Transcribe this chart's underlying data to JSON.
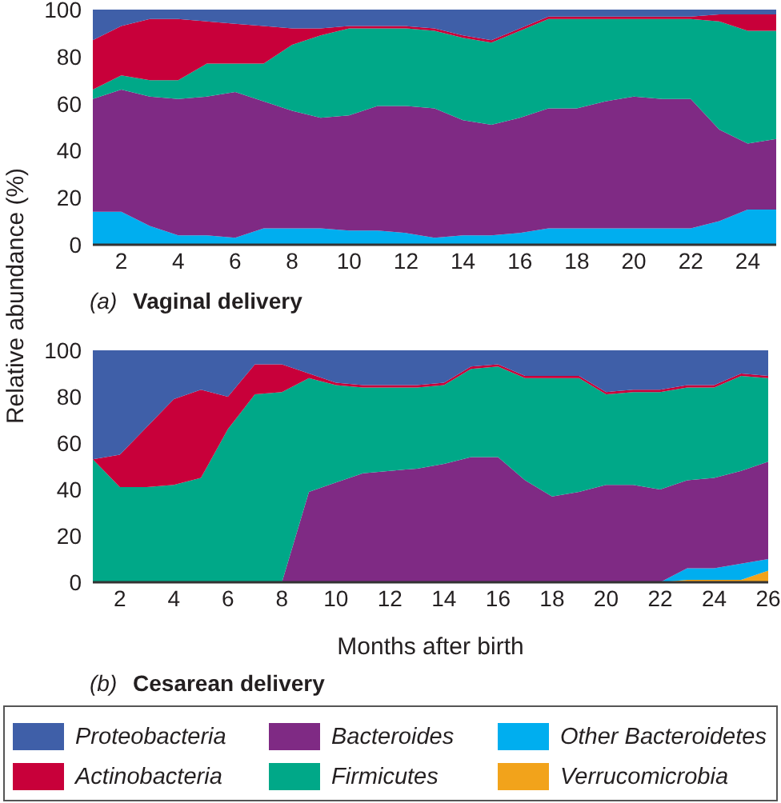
{
  "chart_data": [
    {
      "type": "area",
      "title": "(a) Vaginal delivery",
      "ylabel": "Relative abundance (%)",
      "stacked": true,
      "x": [
        1,
        2,
        3,
        4,
        5,
        6,
        7,
        8,
        9,
        10,
        11,
        12,
        13,
        14,
        15,
        16,
        17,
        18,
        19,
        20,
        21,
        22,
        23,
        24,
        25
      ],
      "xlim": [
        1,
        25
      ],
      "xticks": [
        2,
        4,
        6,
        8,
        10,
        12,
        14,
        16,
        18,
        20,
        22,
        24
      ],
      "ylim": [
        0,
        100
      ],
      "yticks": [
        0,
        20,
        40,
        60,
        80,
        100
      ],
      "series": [
        {
          "color": "#00aeef",
          "values": [
            14,
            14,
            8,
            4,
            4,
            3,
            7,
            7,
            7,
            6,
            6,
            5,
            3,
            4,
            4,
            5,
            7,
            7,
            7,
            7,
            7,
            7,
            10,
            15,
            15
          ]
        },
        {
          "color": "#7f2a84",
          "values": [
            48,
            52,
            55,
            58,
            59,
            62,
            54,
            50,
            47,
            49,
            53,
            54,
            55,
            49,
            47,
            49,
            51,
            51,
            54,
            56,
            55,
            55,
            39,
            28,
            30
          ]
        },
        {
          "color": "#00a888",
          "values": [
            4,
            6,
            7,
            8,
            14,
            12,
            16,
            28,
            35,
            37,
            33,
            33,
            33,
            35,
            35,
            37,
            38,
            38,
            35,
            33,
            34,
            34,
            46,
            48,
            46
          ]
        },
        {
          "color": "#c8003a",
          "values": [
            21,
            21,
            26,
            26,
            18,
            17,
            16,
            7,
            3,
            1,
            1,
            1,
            1,
            1,
            1,
            1,
            1,
            1,
            1,
            1,
            1,
            1,
            3,
            7,
            7
          ]
        },
        {
          "color": "#3f5fa8",
          "values": [
            13,
            7,
            4,
            4,
            5,
            6,
            7,
            8,
            8,
            7,
            7,
            7,
            8,
            11,
            13,
            8,
            3,
            3,
            3,
            3,
            3,
            3,
            2,
            2,
            2
          ]
        }
      ]
    },
    {
      "type": "area",
      "title": "(b) Cesarean delivery",
      "xlabel": "Months after birth",
      "stacked": true,
      "legend": "bottom",
      "x": [
        1,
        2,
        3,
        4,
        5,
        6,
        7,
        8,
        9,
        10,
        11,
        12,
        13,
        14,
        15,
        16,
        17,
        18,
        19,
        20,
        21,
        22,
        23,
        24,
        25,
        26
      ],
      "xlim": [
        1,
        26
      ],
      "xticks": [
        2,
        4,
        6,
        8,
        10,
        12,
        14,
        16,
        18,
        20,
        22,
        24,
        26
      ],
      "ylim": [
        0,
        100
      ],
      "yticks": [
        0,
        20,
        40,
        60,
        80,
        100
      ],
      "series": [
        {
          "name": "Verrucomicrobia",
          "color": "#f2a31b",
          "values": [
            0,
            0,
            0,
            0,
            0,
            0,
            0,
            0,
            0,
            0,
            0,
            0,
            0,
            0,
            0,
            0,
            0,
            0,
            0,
            0,
            0,
            0,
            1,
            1,
            1,
            5
          ]
        },
        {
          "name": "Other Bacteroidetes",
          "color": "#00aeef",
          "values": [
            0,
            0,
            0,
            0,
            0,
            0,
            0,
            0,
            0,
            0,
            0,
            0,
            0,
            0,
            0,
            0,
            0,
            0,
            0,
            0,
            0,
            0,
            5,
            5,
            7,
            5
          ]
        },
        {
          "name": "Bacteroides",
          "color": "#7f2a84",
          "values": [
            0,
            0,
            0,
            0,
            0,
            0,
            0,
            0,
            39,
            43,
            47,
            48,
            49,
            51,
            54,
            54,
            44,
            37,
            39,
            42,
            42,
            40,
            38,
            39,
            40,
            42
          ]
        },
        {
          "name": "Firmicutes",
          "color": "#00a888",
          "values": [
            53,
            41,
            41,
            42,
            45,
            66,
            81,
            82,
            49,
            42,
            37,
            36,
            35,
            34,
            38,
            39,
            44,
            51,
            49,
            39,
            40,
            42,
            40,
            39,
            41,
            36
          ]
        },
        {
          "name": "Actinobacteria",
          "color": "#c8003a",
          "values": [
            0,
            14,
            26,
            37,
            38,
            14,
            13,
            12,
            2,
            1,
            1,
            1,
            1,
            1,
            1,
            1,
            1,
            1,
            1,
            1,
            1,
            1,
            1,
            1,
            1,
            1
          ]
        },
        {
          "name": "Proteobacteria",
          "color": "#3f5fa8",
          "values": [
            47,
            45,
            33,
            21,
            17,
            20,
            6,
            6,
            10,
            14,
            15,
            15,
            15,
            14,
            7,
            6,
            11,
            11,
            11,
            18,
            17,
            17,
            15,
            15,
            10,
            11
          ]
        }
      ]
    }
  ]
}
